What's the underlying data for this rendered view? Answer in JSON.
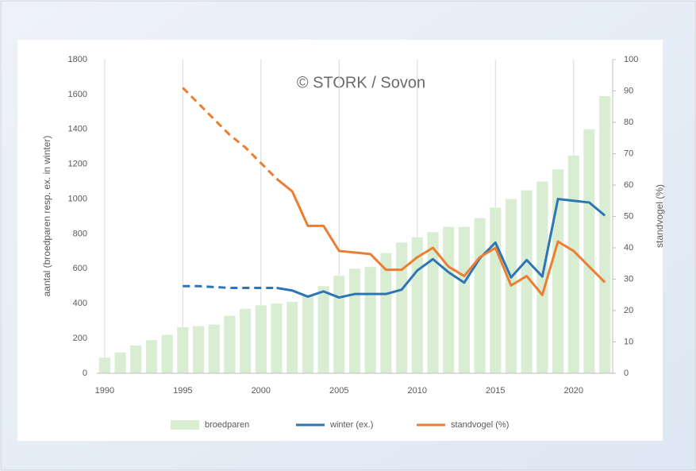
{
  "chart_data": {
    "type": "bar_line",
    "annotation": "© STORK / Sovon",
    "ylabel": "aantal (broedparen resp. ex. in winter)",
    "y2label": "standvogel (%)",
    "x": [
      1990,
      1991,
      1992,
      1993,
      1994,
      1995,
      1996,
      1997,
      1998,
      1999,
      2000,
      2001,
      2002,
      2003,
      2004,
      2005,
      2006,
      2007,
      2008,
      2009,
      2010,
      2011,
      2012,
      2013,
      2014,
      2015,
      2016,
      2017,
      2018,
      2019,
      2020,
      2021,
      2022
    ],
    "xlim": [
      1989.5,
      2022.5
    ],
    "xticks": [
      1990,
      1995,
      2000,
      2005,
      2010,
      2015,
      2020
    ],
    "ylim": [
      0,
      1800
    ],
    "yticks": [
      0,
      200,
      400,
      600,
      800,
      1000,
      1200,
      1400,
      1600,
      1800
    ],
    "y2lim": [
      0,
      100
    ],
    "y2ticks": [
      0,
      10,
      20,
      30,
      40,
      50,
      60,
      70,
      80,
      90,
      100
    ],
    "grid": true,
    "legend": "bottom",
    "series": [
      {
        "name": "broedparen",
        "type": "bar",
        "color": "#d8edd2",
        "values": [
          90,
          120,
          160,
          190,
          220,
          265,
          270,
          280,
          330,
          370,
          390,
          400,
          410,
          450,
          500,
          560,
          600,
          610,
          690,
          750,
          780,
          810,
          840,
          840,
          890,
          950,
          1000,
          1050,
          1100,
          1170,
          1250,
          1400,
          1590
        ]
      },
      {
        "name": "winter (ex.)",
        "type": "line",
        "color": "#2e75b6",
        "dashed_until": 2001,
        "values": [
          null,
          null,
          null,
          null,
          null,
          500,
          500,
          495,
          490,
          490,
          490,
          490,
          475,
          440,
          470,
          435,
          455,
          455,
          455,
          480,
          590,
          655,
          580,
          520,
          660,
          750,
          550,
          650,
          555,
          1000,
          990,
          980,
          905
        ]
      },
      {
        "name": "standvogel (%)",
        "type": "line",
        "color": "#ed7d31",
        "axis": "y2",
        "dashed_until": 2001,
        "values": [
          null,
          null,
          null,
          null,
          null,
          91,
          86,
          81,
          76,
          72,
          67,
          62,
          58,
          47,
          47,
          39,
          38.5,
          38,
          33,
          33,
          37,
          40,
          34,
          31,
          37,
          40,
          28,
          31,
          25,
          42,
          39,
          34,
          29
        ]
      }
    ]
  }
}
